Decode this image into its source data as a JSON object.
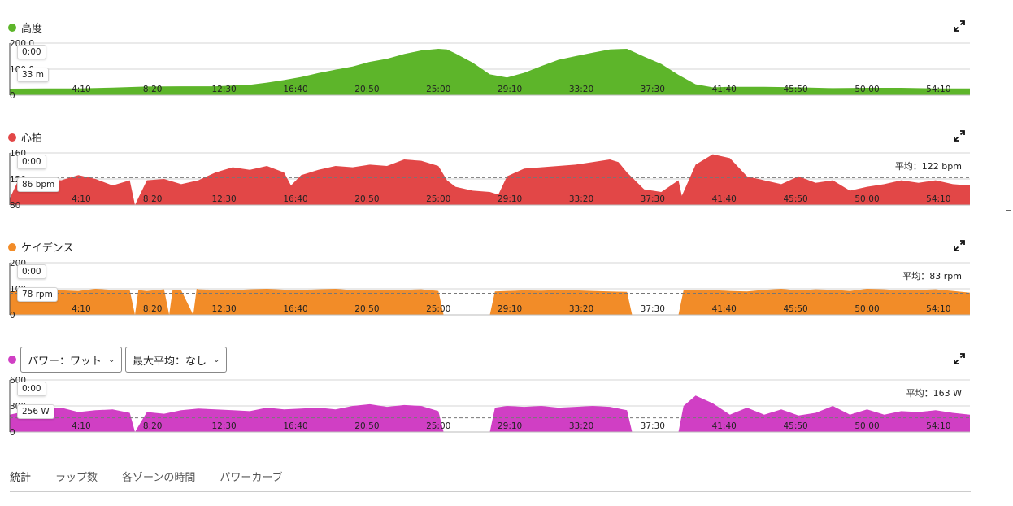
{
  "ui": {
    "tabs": [
      "統計",
      "ラップ数",
      "各ゾーンの時間",
      "パワーカーブ"
    ],
    "power_select_label": "パワー：ワット",
    "maxavg_select_label": "最大平均：なし",
    "expand_icon": "expand-icon",
    "chevron_icon": "chevron-down-icon"
  },
  "x_ticks": [
    "4:10",
    "8:20",
    "12:30",
    "16:40",
    "20:50",
    "25:00",
    "29:10",
    "33:20",
    "37:30",
    "41:40",
    "45:50",
    "50:00",
    "54:10"
  ],
  "x_range_minutes": [
    0,
    56
  ],
  "chart_data": [
    {
      "type": "area",
      "title": "高度",
      "color": "#5db52a",
      "ylim": [
        0,
        200
      ],
      "y_ticks": [
        "200.0",
        "100.0",
        "0"
      ],
      "tooltip_time": "0:00",
      "tooltip_value": "33 m",
      "average_label": "",
      "average_value": null,
      "x": [
        0,
        2,
        4,
        6,
        8,
        10,
        12,
        14,
        15,
        16,
        17,
        18,
        19,
        20,
        21,
        22,
        23,
        24,
        25,
        25.5,
        26,
        27,
        28,
        29,
        30,
        31,
        32,
        33,
        34,
        35,
        36,
        37,
        38,
        39,
        40,
        41,
        42,
        44,
        46,
        48,
        50,
        52,
        54,
        56
      ],
      "y": [
        25,
        26,
        26,
        29,
        33,
        34,
        34,
        40,
        48,
        58,
        70,
        85,
        98,
        110,
        128,
        140,
        158,
        172,
        178,
        176,
        160,
        125,
        80,
        68,
        86,
        112,
        136,
        150,
        163,
        176,
        178,
        148,
        120,
        78,
        42,
        30,
        32,
        32,
        30,
        27,
        28,
        28,
        26,
        26
      ]
    },
    {
      "type": "area",
      "title": "心拍",
      "color": "#e24747",
      "ylim": [
        80,
        160
      ],
      "y_ticks": [
        "160",
        "120",
        "80"
      ],
      "tooltip_time": "0:00",
      "tooltip_value": "86 bpm",
      "average_label": "平均：122 bpm",
      "average_value": 122,
      "x": [
        0,
        0.5,
        1,
        2,
        3,
        4,
        5,
        6,
        7,
        7.3,
        8,
        9,
        10,
        11,
        12,
        13,
        14,
        15,
        16,
        16.4,
        17,
        18,
        19,
        20,
        21,
        22,
        23,
        24,
        25,
        25.5,
        26,
        27,
        28,
        28.5,
        29,
        30,
        31,
        32,
        33,
        34,
        35,
        35.5,
        36,
        37,
        38,
        39,
        39.2,
        40,
        41,
        42,
        43,
        44,
        45,
        46,
        47,
        48,
        49,
        50,
        51,
        52,
        53,
        54,
        55,
        56
      ],
      "y": [
        90,
        118,
        110,
        120,
        118,
        126,
        120,
        110,
        118,
        80,
        118,
        120,
        112,
        118,
        130,
        138,
        134,
        140,
        130,
        110,
        126,
        134,
        140,
        138,
        142,
        140,
        150,
        148,
        140,
        118,
        108,
        102,
        100,
        96,
        124,
        136,
        138,
        140,
        142,
        146,
        150,
        146,
        130,
        104,
        100,
        118,
        94,
        142,
        158,
        152,
        124,
        118,
        112,
        124,
        114,
        118,
        102,
        108,
        112,
        118,
        114,
        118,
        112,
        110
      ]
    },
    {
      "type": "area",
      "title": "ケイデンス",
      "color": "#f28c28",
      "ylim": [
        0,
        200
      ],
      "y_ticks": [
        "200",
        "100",
        "0"
      ],
      "tooltip_time": "0:00",
      "tooltip_value": "78 rpm",
      "average_label": "平均：83 rpm",
      "average_value": 83,
      "x": [
        0,
        1,
        2,
        3,
        4,
        5,
        6,
        7,
        7.3,
        7.5,
        8,
        9,
        9.3,
        9.5,
        10,
        10.7,
        10.9,
        11,
        12,
        13,
        14,
        15,
        16,
        17,
        18,
        19,
        20,
        21,
        22,
        23,
        24,
        25,
        25.3,
        28,
        28.3,
        29,
        30,
        31,
        32,
        33,
        34,
        35,
        36,
        36.3,
        39,
        39.3,
        40,
        41,
        42,
        43,
        44,
        45,
        46,
        47,
        48,
        49,
        50,
        51,
        52,
        53,
        54,
        55,
        56
      ],
      "y": [
        90,
        92,
        95,
        94,
        92,
        100,
        96,
        94,
        0,
        95,
        92,
        98,
        0,
        96,
        94,
        0,
        100,
        98,
        96,
        95,
        98,
        100,
        97,
        96,
        98,
        100,
        95,
        96,
        97,
        96,
        98,
        92,
        0,
        0,
        90,
        92,
        94,
        93,
        95,
        94,
        92,
        90,
        88,
        0,
        0,
        94,
        96,
        95,
        92,
        90,
        96,
        100,
        94,
        98,
        96,
        92,
        100,
        98,
        94,
        96,
        98,
        92,
        85
      ]
    },
    {
      "type": "area",
      "title": "",
      "color": "#d03fc4",
      "ylim": [
        0,
        600
      ],
      "y_ticks": [
        "600",
        "300",
        "0"
      ],
      "tooltip_time": "0:00",
      "tooltip_value": "256 W",
      "average_label": "平均：163 W",
      "average_value": 163,
      "x": [
        0,
        1,
        2,
        3,
        4,
        5,
        6,
        7,
        7.3,
        8,
        9,
        10,
        11,
        12,
        13,
        14,
        15,
        16,
        17,
        18,
        19,
        20,
        21,
        22,
        23,
        24,
        25,
        25.3,
        28,
        28.3,
        29,
        30,
        31,
        32,
        33,
        34,
        35,
        36,
        36.3,
        39,
        39.3,
        40,
        41,
        42,
        43,
        44,
        45,
        46,
        47,
        48,
        49,
        50,
        51,
        52,
        53,
        54,
        55,
        56
      ],
      "y": [
        200,
        240,
        260,
        280,
        230,
        250,
        260,
        220,
        0,
        230,
        210,
        250,
        270,
        260,
        250,
        240,
        280,
        260,
        270,
        280,
        260,
        300,
        320,
        290,
        310,
        300,
        240,
        0,
        0,
        280,
        300,
        290,
        300,
        280,
        290,
        300,
        290,
        250,
        0,
        0,
        300,
        420,
        330,
        200,
        280,
        200,
        260,
        190,
        220,
        300,
        200,
        260,
        200,
        240,
        230,
        250,
        220,
        200
      ]
    }
  ]
}
